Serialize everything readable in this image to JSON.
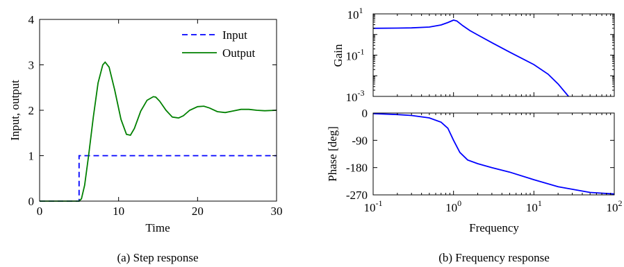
{
  "chart_data": [
    {
      "type": "line",
      "caption": "(a) Step response",
      "xlabel": "Time",
      "ylabel": "Input, output",
      "xlim": [
        0,
        30
      ],
      "ylim": [
        0,
        4
      ],
      "xticks": [
        "0",
        "10",
        "20",
        "30"
      ],
      "yticks": [
        "0",
        "1",
        "2",
        "3",
        "4"
      ],
      "legend_position": "top-right",
      "grid": false,
      "series": [
        {
          "name": "Input",
          "style": "dashed",
          "color": "#0000ff",
          "x": [
            0,
            5,
            5,
            30
          ],
          "y": [
            0,
            0,
            1,
            1
          ]
        },
        {
          "name": "Output",
          "style": "solid",
          "color": "#008000",
          "x": [
            0,
            5,
            5.3,
            5.7,
            6.2,
            6.8,
            7.4,
            8.0,
            8.3,
            8.8,
            9.5,
            10.3,
            11.0,
            11.5,
            12.0,
            12.8,
            13.6,
            14.4,
            14.7,
            15.2,
            16.0,
            16.8,
            17.6,
            18.2,
            19.0,
            20.0,
            20.8,
            21.5,
            22.5,
            23.5,
            24.4,
            25.5,
            26.5,
            27.5,
            28.5,
            30.0
          ],
          "y": [
            0,
            0,
            0.05,
            0.35,
            1.0,
            1.85,
            2.6,
            3.0,
            3.06,
            2.95,
            2.45,
            1.8,
            1.47,
            1.45,
            1.6,
            1.98,
            2.22,
            2.3,
            2.29,
            2.2,
            2.0,
            1.85,
            1.83,
            1.88,
            2.0,
            2.08,
            2.09,
            2.05,
            1.97,
            1.95,
            1.98,
            2.02,
            2.02,
            2.0,
            1.99,
            2.0
          ]
        }
      ]
    },
    {
      "type": "line",
      "caption": "(b) Frequency response",
      "panels": [
        {
          "ylabel": "Gain",
          "yscale": "log",
          "ylim": [
            0.001,
            10
          ],
          "yticks": [
            {
              "base": "10",
              "exp": "1",
              "value": 10
            },
            {
              "base": "10",
              "exp": "-1",
              "value": 0.1
            },
            {
              "base": "10",
              "exp": "-3",
              "value": 0.001
            }
          ],
          "series": [
            {
              "color": "#0000ff",
              "x": [
                0.1,
                0.2,
                0.3,
                0.5,
                0.7,
                0.85,
                1.0,
                1.1,
                1.3,
                1.6,
                2.0,
                3.0,
                5.0,
                10,
                15,
                20,
                27
              ],
              "y": [
                2.0,
                2.05,
                2.1,
                2.3,
                2.9,
                3.8,
                5.0,
                4.5,
                2.7,
                1.55,
                0.95,
                0.4,
                0.14,
                0.035,
                0.012,
                0.004,
                0.001
              ]
            }
          ]
        },
        {
          "ylabel": "Phase [deg]",
          "xlabel": "Frequency",
          "ylim": [
            -270,
            0
          ],
          "yticks": [
            "0",
            "-90",
            "-180",
            "-270"
          ],
          "series": [
            {
              "color": "#0000ff",
              "x": [
                0.1,
                0.2,
                0.3,
                0.5,
                0.7,
                0.85,
                1.0,
                1.2,
                1.5,
                2.0,
                3.0,
                5.0,
                10,
                20,
                50,
                100
              ],
              "y": [
                -2,
                -5,
                -8,
                -16,
                -30,
                -50,
                -90,
                -130,
                -155,
                -167,
                -180,
                -195,
                -220,
                -243,
                -262,
                -267
              ]
            }
          ]
        }
      ],
      "xscale": "log",
      "xlim": [
        0.1,
        100
      ],
      "xticks": [
        {
          "base": "10",
          "exp": "-1",
          "value": 0.1
        },
        {
          "base": "10",
          "exp": "0",
          "value": 1
        },
        {
          "base": "10",
          "exp": "1",
          "value": 10
        },
        {
          "base": "10",
          "exp": "2",
          "value": 100
        }
      ]
    }
  ]
}
